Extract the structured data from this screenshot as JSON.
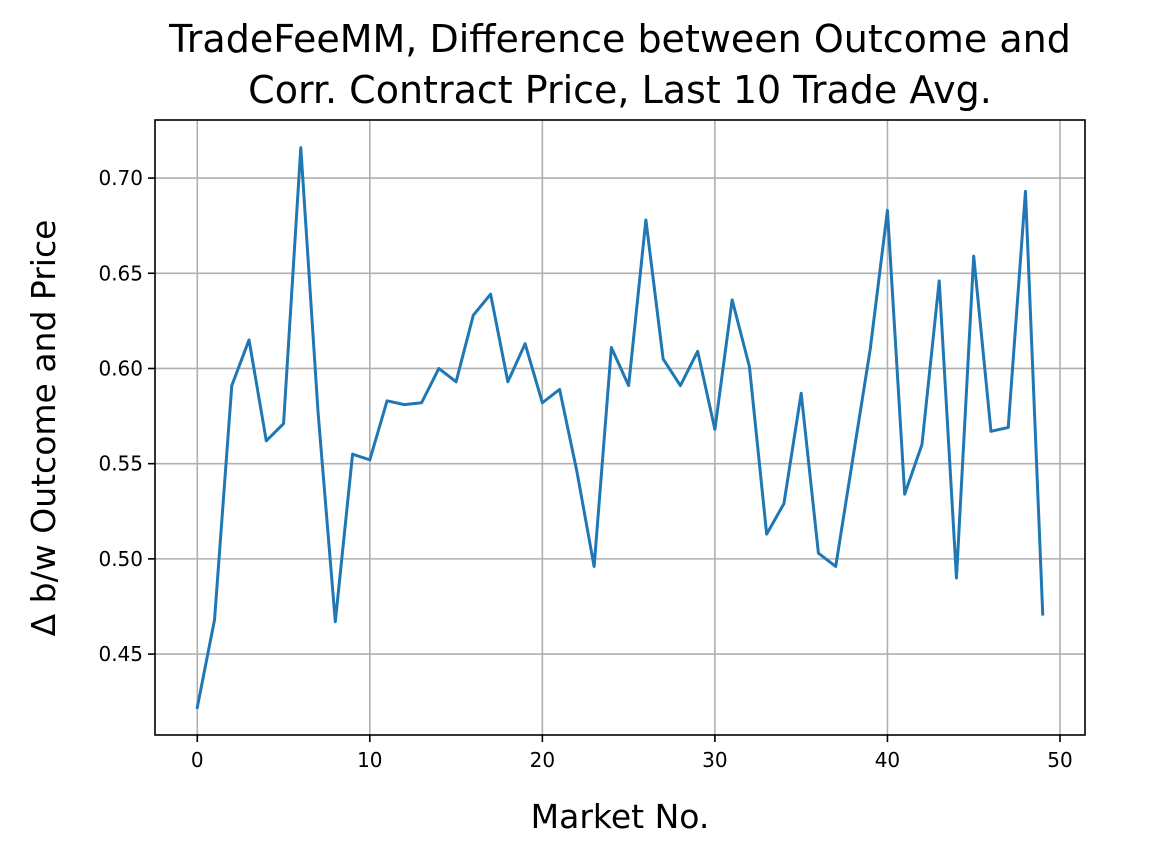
{
  "chart_data": {
    "type": "line",
    "title_line1": "TradeFeeMM, Difference between Outcome and",
    "title_line2": "Corr. Contract Price, Last 10 Trade Avg.",
    "xlabel": "Market No.",
    "ylabel": "Δ b/w Outcome and Price",
    "xlim": [
      -2.45,
      51.45
    ],
    "ylim": [
      0.4075,
      0.7305
    ],
    "xticks": [
      0,
      10,
      20,
      30,
      40,
      50
    ],
    "xtick_labels": [
      "0",
      "10",
      "20",
      "30",
      "40",
      "50"
    ],
    "yticks": [
      0.45,
      0.5,
      0.55,
      0.6,
      0.65,
      0.7
    ],
    "ytick_labels": [
      "0.45",
      "0.50",
      "0.55",
      "0.60",
      "0.65",
      "0.70"
    ],
    "grid": true,
    "line_color": "#1f77b4",
    "series": [
      {
        "x": [
          0,
          1,
          2,
          3,
          4,
          5,
          6,
          7,
          8,
          9,
          10,
          11,
          12,
          13,
          14,
          15,
          16,
          17,
          18,
          19,
          20,
          21,
          22,
          23,
          24,
          25,
          26,
          27,
          28,
          29,
          30,
          31,
          32,
          33,
          34,
          35,
          36,
          37,
          38,
          39,
          40,
          41,
          42,
          43,
          44,
          45,
          46,
          47,
          48,
          49
        ],
        "values": [
          0.422,
          0.468,
          0.591,
          0.615,
          0.562,
          0.571,
          0.716,
          0.577,
          0.467,
          0.555,
          0.552,
          0.583,
          0.581,
          0.582,
          0.6,
          0.593,
          0.628,
          0.639,
          0.593,
          0.613,
          0.582,
          0.589,
          0.546,
          0.496,
          0.611,
          0.591,
          0.678,
          0.605,
          0.591,
          0.609,
          0.568,
          0.636,
          0.601,
          0.513,
          0.529,
          0.587,
          0.503,
          0.496,
          0.553,
          0.61,
          0.683,
          0.534,
          0.56,
          0.646,
          0.49,
          0.659,
          0.567,
          0.569,
          0.693,
          0.471
        ]
      }
    ]
  }
}
